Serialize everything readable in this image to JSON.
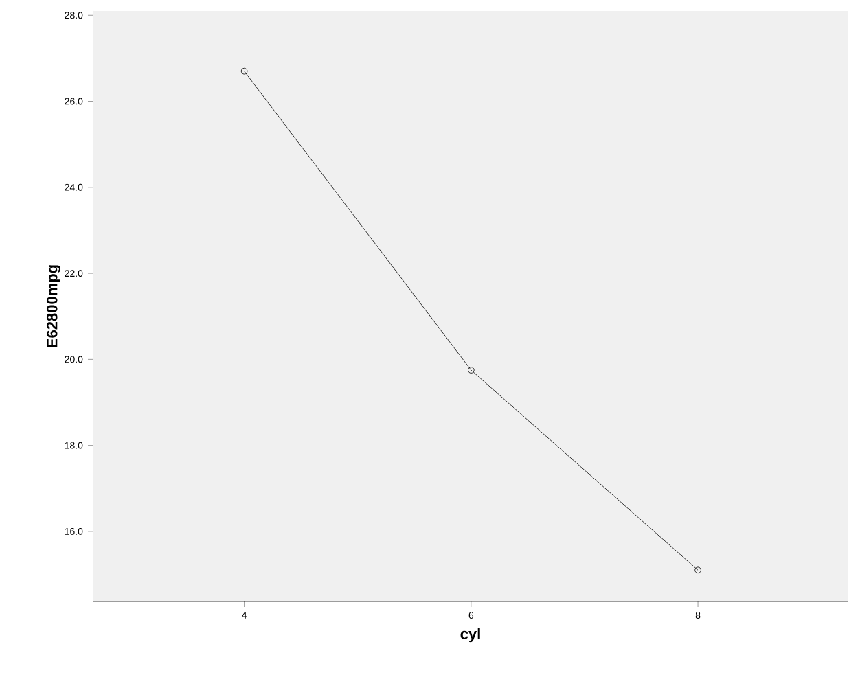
{
  "chart_data": {
    "type": "line",
    "xlabel": "cyl",
    "ylabel": "E62800mpg",
    "x": [
      4,
      6,
      8
    ],
    "values": [
      26.7,
      19.75,
      15.1
    ],
    "color": "#000000",
    "marker": "circle",
    "line_style": "solid",
    "xlim": [
      2.67,
      9.32
    ],
    "ylim": [
      14.37,
      28.1
    ],
    "xticks": [
      4,
      6,
      8
    ],
    "yticks": [
      {
        "value": 16,
        "label": "16.0"
      },
      {
        "value": 18,
        "label": "18.0"
      },
      {
        "value": 20,
        "label": "20.0"
      },
      {
        "value": 22,
        "label": "22.0"
      },
      {
        "value": 24,
        "label": "24.0"
      },
      {
        "value": 26,
        "label": "26.0"
      },
      {
        "value": 28,
        "label": "28.0"
      }
    ]
  }
}
